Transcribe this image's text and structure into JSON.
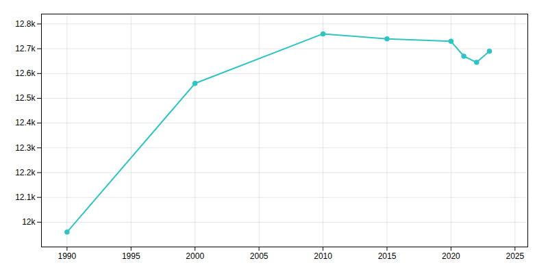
{
  "chart_data": {
    "type": "line",
    "x": [
      1990,
      2000,
      2010,
      2015,
      2020,
      2021,
      2022,
      2023
    ],
    "values": [
      11960,
      12560,
      12760,
      12740,
      12730,
      12670,
      12645,
      12690
    ],
    "color": "#2EC4C4",
    "marker": "circle",
    "xlim": [
      1988,
      2026
    ],
    "ylim": [
      11900,
      12840
    ],
    "xticks": [
      1990,
      1995,
      2000,
      2005,
      2010,
      2015,
      2020,
      2025
    ],
    "yticks": [
      {
        "value": 12000,
        "label": "12k"
      },
      {
        "value": 12100,
        "label": "12.1k"
      },
      {
        "value": 12200,
        "label": "12.2k"
      },
      {
        "value": 12300,
        "label": "12.3k"
      },
      {
        "value": 12400,
        "label": "12.4k"
      },
      {
        "value": 12500,
        "label": "12.5k"
      },
      {
        "value": 12600,
        "label": "12.6k"
      },
      {
        "value": 12700,
        "label": "12.7k"
      },
      {
        "value": 12800,
        "label": "12.8k"
      }
    ],
    "grid": true
  }
}
